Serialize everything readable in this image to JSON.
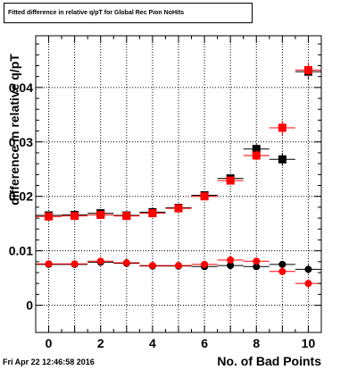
{
  "chart_data": {
    "type": "scatter",
    "title": "Fitted difference in relative q/pT for Global Rec Pion NoHits",
    "xlabel": "No. of Bad Points",
    "ylabel": "difference in relative q/pT",
    "xlim": [
      -0.5,
      10.5
    ],
    "ylim": [
      -0.005,
      0.0495
    ],
    "xticks": [
      0,
      2,
      4,
      6,
      8,
      10
    ],
    "yticks": [
      0,
      0.01,
      0.02,
      0.03,
      0.04
    ],
    "ytick_labels": [
      "0",
      "0.01",
      "0.02",
      "0.03",
      "0.04"
    ],
    "grid": true,
    "series": [
      {
        "marker": "square",
        "color": "#000000",
        "x": [
          0,
          1,
          2,
          3,
          4,
          5,
          6,
          7,
          8,
          9,
          10
        ],
        "y": [
          0.0165,
          0.0166,
          0.0169,
          0.0165,
          0.0171,
          0.0179,
          0.0202,
          0.0233,
          0.0287,
          0.0268,
          0.0429
        ],
        "yerr": [
          0.0004,
          0.0004,
          0.0004,
          0.0004,
          0.0004,
          0.0004,
          0.0005,
          0.0006,
          0.0009,
          0.0012,
          0.0013
        ]
      },
      {
        "marker": "square",
        "color": "#ff0000",
        "x": [
          0,
          1,
          2,
          3,
          4,
          5,
          6,
          7,
          8,
          9,
          10
        ],
        "y": [
          0.0163,
          0.0164,
          0.0166,
          0.0164,
          0.0169,
          0.0178,
          0.02,
          0.0229,
          0.0275,
          0.0326,
          0.0432
        ],
        "yerr": [
          0.0004,
          0.0004,
          0.0004,
          0.0004,
          0.0004,
          0.0004,
          0.0005,
          0.0006,
          0.0009,
          0.0013,
          0.0013
        ]
      },
      {
        "marker": "circle",
        "color": "#000000",
        "x": [
          0,
          1,
          2,
          3,
          4,
          5,
          6,
          7,
          8,
          9,
          10
        ],
        "y": [
          0.0075,
          0.0075,
          0.0079,
          0.0077,
          0.0072,
          0.0072,
          0.0071,
          0.0073,
          0.0071,
          0.0075,
          0.0066
        ],
        "yerr": [
          0.0003,
          0.0003,
          0.0003,
          0.0003,
          0.0003,
          0.0003,
          0.0003,
          0.0004,
          0.0005,
          0.0006,
          0.0008
        ]
      },
      {
        "marker": "circle",
        "color": "#ff0000",
        "x": [
          0,
          1,
          2,
          3,
          4,
          5,
          6,
          7,
          8,
          9,
          10
        ],
        "y": [
          0.0076,
          0.0076,
          0.0081,
          0.0078,
          0.0073,
          0.0073,
          0.0075,
          0.0083,
          0.0081,
          0.0062,
          0.004
        ],
        "yerr": [
          0.0003,
          0.0003,
          0.0003,
          0.0003,
          0.0003,
          0.0003,
          0.0003,
          0.0004,
          0.0005,
          0.0007,
          0.0008
        ]
      }
    ]
  },
  "footer": {
    "timestamp": "Fri Apr 22 12:46:58 2016"
  }
}
